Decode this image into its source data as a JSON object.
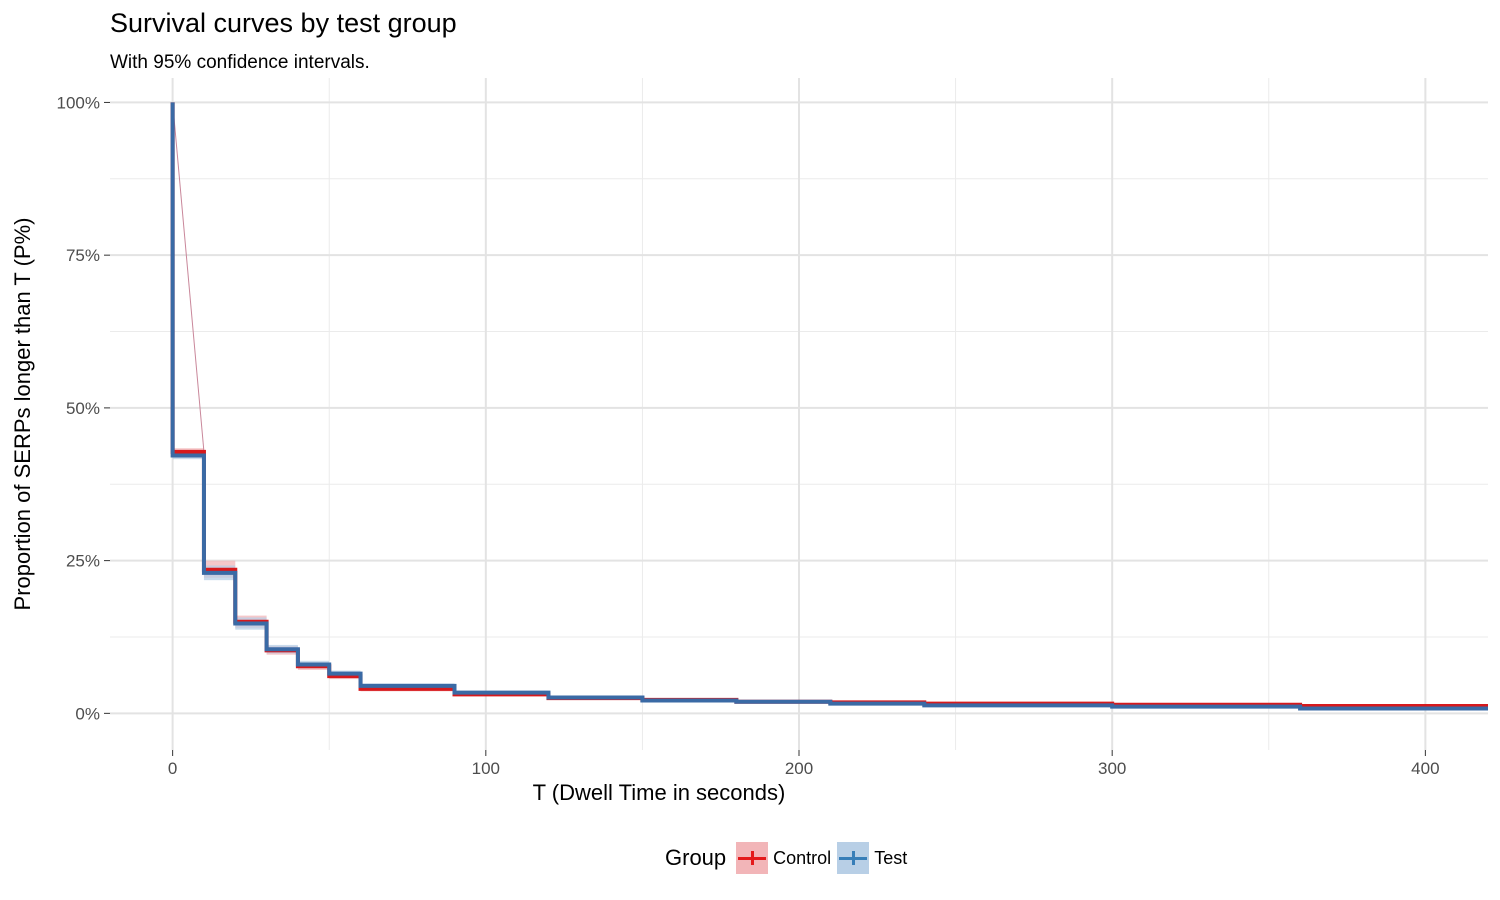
{
  "title": "Survival curves by test group",
  "subtitle": "With 95% confidence intervals.",
  "legend": {
    "title": "Group",
    "items": [
      {
        "label": "Control",
        "color": "#e41a1c",
        "fill": "#f2b5b8"
      },
      {
        "label": "Test",
        "color": "#377eb8",
        "fill": "#b8cfe6"
      }
    ]
  },
  "chart_data": {
    "type": "line",
    "step": true,
    "xlabel": "T (Dwell Time in seconds)",
    "ylabel": "Proportion of SERPs longer than T (P%)",
    "xlim": [
      -20,
      420
    ],
    "ylim": [
      -0.06,
      1.04
    ],
    "xticks": [
      0,
      100,
      200,
      300,
      400
    ],
    "xtick_labels": [
      "0",
      "100",
      "200",
      "300",
      "400"
    ],
    "yticks": [
      0,
      0.25,
      0.5,
      0.75,
      1.0
    ],
    "ytick_labels": [
      "0%",
      "25%",
      "50%",
      "75%",
      "100%"
    ],
    "grid": true,
    "legend_position": "bottom",
    "series": [
      {
        "name": "Control",
        "color": "#d7191c",
        "x": [
          0,
          10,
          20,
          30,
          40,
          50,
          60,
          90,
          120,
          150,
          180,
          210,
          240,
          300,
          360,
          420
        ],
        "y": [
          0.428,
          0.235,
          0.15,
          0.103,
          0.077,
          0.061,
          0.04,
          0.031,
          0.025,
          0.022,
          0.019,
          0.018,
          0.016,
          0.014,
          0.012,
          0.012
        ],
        "lower": [
          0.422,
          0.222,
          0.14,
          0.096,
          0.071,
          0.056,
          0.036,
          0.028,
          0.022,
          0.02,
          0.017,
          0.016,
          0.014,
          0.012,
          0.01,
          0.01
        ],
        "upper": [
          0.434,
          0.25,
          0.16,
          0.11,
          0.083,
          0.066,
          0.044,
          0.034,
          0.028,
          0.024,
          0.021,
          0.02,
          0.018,
          0.016,
          0.014,
          0.014
        ]
      },
      {
        "name": "Test",
        "color": "#3a6aa5",
        "x": [
          0,
          10,
          20,
          30,
          40,
          50,
          60,
          90,
          120,
          150,
          180,
          210,
          240,
          300,
          360,
          420
        ],
        "y": [
          0.422,
          0.23,
          0.147,
          0.105,
          0.08,
          0.065,
          0.045,
          0.034,
          0.026,
          0.021,
          0.019,
          0.016,
          0.013,
          0.011,
          0.008,
          0.008
        ],
        "lower": [
          0.416,
          0.218,
          0.137,
          0.098,
          0.074,
          0.06,
          0.041,
          0.031,
          0.023,
          0.019,
          0.017,
          0.014,
          0.011,
          0.009,
          0.006,
          0.006
        ],
        "upper": [
          0.428,
          0.242,
          0.157,
          0.112,
          0.086,
          0.07,
          0.049,
          0.037,
          0.029,
          0.023,
          0.021,
          0.018,
          0.015,
          0.013,
          0.01,
          0.01
        ]
      }
    ]
  }
}
